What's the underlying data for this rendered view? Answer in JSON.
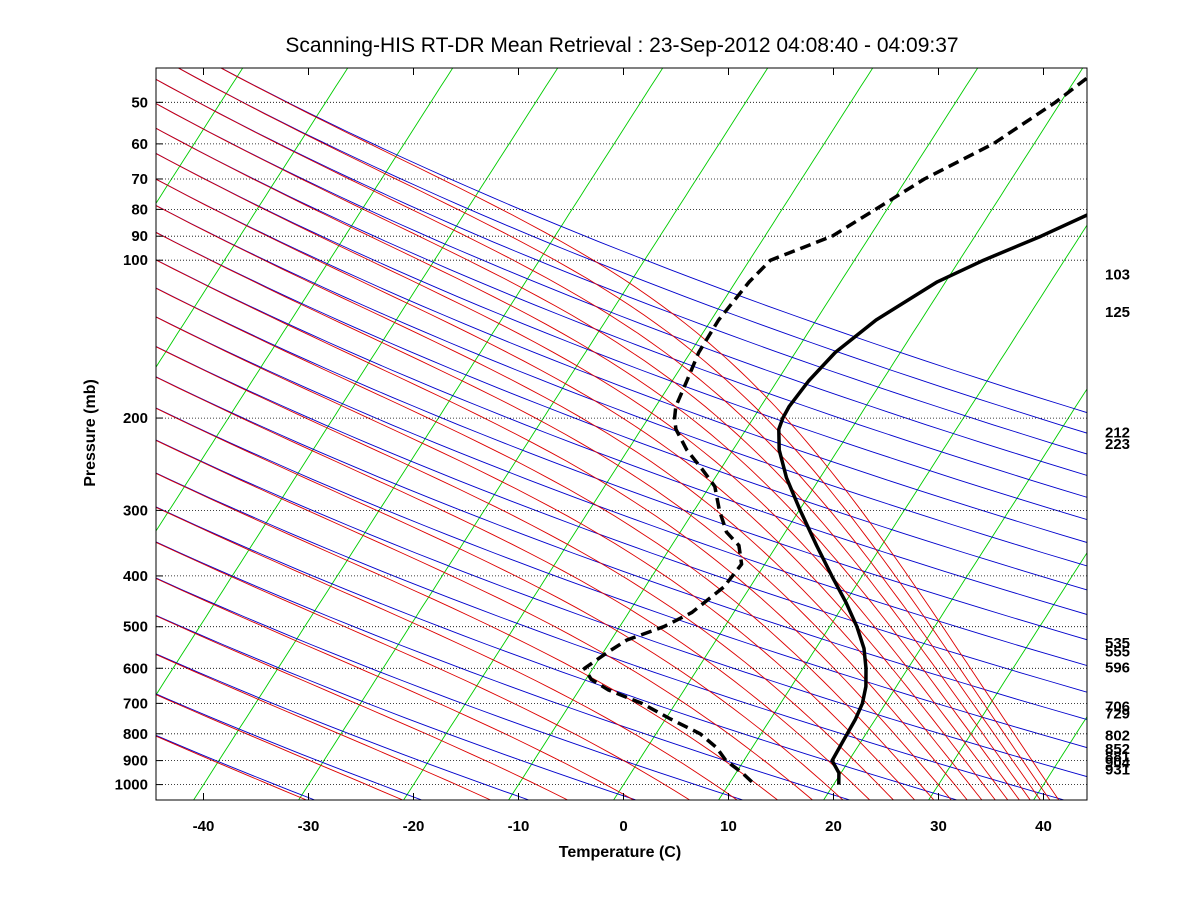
{
  "chart_data": {
    "type": "line",
    "title": "Scanning-HIS RT-DR Mean Retrieval : 23-Sep-2012 04:08:40 - 04:09:37",
    "xlabel": "Temperature (C)",
    "ylabel": "Pressure (mb)",
    "xlim": [
      -45,
      45
    ],
    "ylim": [
      1070,
      43
    ],
    "y_scale": "log",
    "grid": "horizontal dotted at labeled pressures",
    "x_ticks": [
      -40,
      -30,
      -20,
      -10,
      0,
      10,
      20,
      30,
      40
    ],
    "x_tick_labels": [
      "-40",
      "-30",
      "-20",
      "-10",
      "0",
      "10",
      "20",
      "30",
      "40"
    ],
    "y_ticks": [
      50,
      60,
      70,
      80,
      90,
      100,
      200,
      300,
      400,
      500,
      600,
      700,
      800,
      900,
      1000
    ],
    "y_tick_labels": [
      "50",
      "60",
      "70",
      "80",
      "90",
      "100",
      "200",
      "300",
      "400",
      "500",
      "600",
      "700",
      "800",
      "900",
      "1000"
    ],
    "right_labels": [
      {
        "text": "103",
        "p": 106
      },
      {
        "text": "125",
        "p": 125
      },
      {
        "text": "212",
        "p": 212
      },
      {
        "text": "223",
        "p": 223
      },
      {
        "text": "535",
        "p": 535
      },
      {
        "text": "555",
        "p": 555
      },
      {
        "text": "596",
        "p": 596
      },
      {
        "text": "706",
        "p": 706
      },
      {
        "text": "729",
        "p": 729
      },
      {
        "text": "802",
        "p": 802
      },
      {
        "text": "852",
        "p": 852
      },
      {
        "text": "881",
        "p": 881
      },
      {
        "text": "904",
        "p": 904
      },
      {
        "text": "931",
        "p": 931
      }
    ],
    "background_lines": {
      "dry_adiabats_theta_K": [
        240,
        250,
        260,
        270,
        280,
        290,
        300,
        310,
        320,
        330,
        340,
        350,
        360,
        370,
        380,
        390,
        400,
        410,
        420,
        430,
        440,
        450,
        460,
        470
      ],
      "moist_adiabats_theta_e_K": [
        240,
        250,
        260,
        270,
        280,
        290,
        300,
        310,
        320,
        330,
        340,
        350,
        360,
        370,
        380,
        390,
        400,
        410,
        420,
        430,
        440,
        450,
        460,
        470
      ],
      "isotherms_C": [
        -140,
        -130,
        -120,
        -110,
        -100,
        -90,
        -80,
        -70,
        -60,
        -50,
        -40,
        -30,
        -20,
        -10,
        0,
        10,
        20,
        30,
        40
      ],
      "colors": {
        "dry_adiabat": "#0000cc",
        "moist_adiabat": "#dd0000",
        "isotherm": "#00cc00",
        "grid": "#000000",
        "profile": "#000000"
      }
    },
    "series": [
      {
        "style": "solid",
        "p": [
          45,
          50,
          60,
          70,
          80,
          90,
          100,
          110,
          130,
          150,
          170,
          190,
          200,
          210,
          230,
          260,
          300,
          350,
          400,
          450,
          500,
          550,
          600,
          650,
          700,
          750,
          800,
          850,
          900,
          950,
          1000
        ],
        "T": [
          33,
          27.8,
          21,
          15.3,
          10.2,
          6.3,
          2.3,
          -0.8,
          -4.3,
          -6.2,
          -7,
          -7.3,
          -7.2,
          -6.9,
          -5.6,
          -3.2,
          0.1,
          3.8,
          7.1,
          10.1,
          12.6,
          14.6,
          16,
          17.1,
          17.8,
          18.1,
          18.2,
          18.3,
          18.4,
          19.8,
          20.5
        ]
      },
      {
        "style": "dashed",
        "p": [
          45,
          50,
          60,
          70,
          80,
          90,
          100,
          110,
          130,
          150,
          170,
          190,
          200,
          210,
          230,
          250,
          270,
          300,
          330,
          350,
          380,
          420,
          470,
          500,
          530,
          560,
          600,
          630,
          660,
          700,
          750,
          800,
          850,
          900,
          950,
          1000
        ],
        "T": [
          1,
          -0.5,
          -3.9,
          -8.3,
          -11.1,
          -13.6,
          -18,
          -18.7,
          -19.3,
          -19.2,
          -18.6,
          -18.1,
          -17.5,
          -16.7,
          -14.4,
          -11.8,
          -9.5,
          -7.6,
          -5.6,
          -3.6,
          -2.2,
          -2.5,
          -4,
          -5.8,
          -8.5,
          -9.6,
          -10.8,
          -9.5,
          -7.2,
          -3.2,
          0.5,
          4.2,
          6.6,
          8.3,
          10.6,
          12.5
        ]
      }
    ]
  }
}
